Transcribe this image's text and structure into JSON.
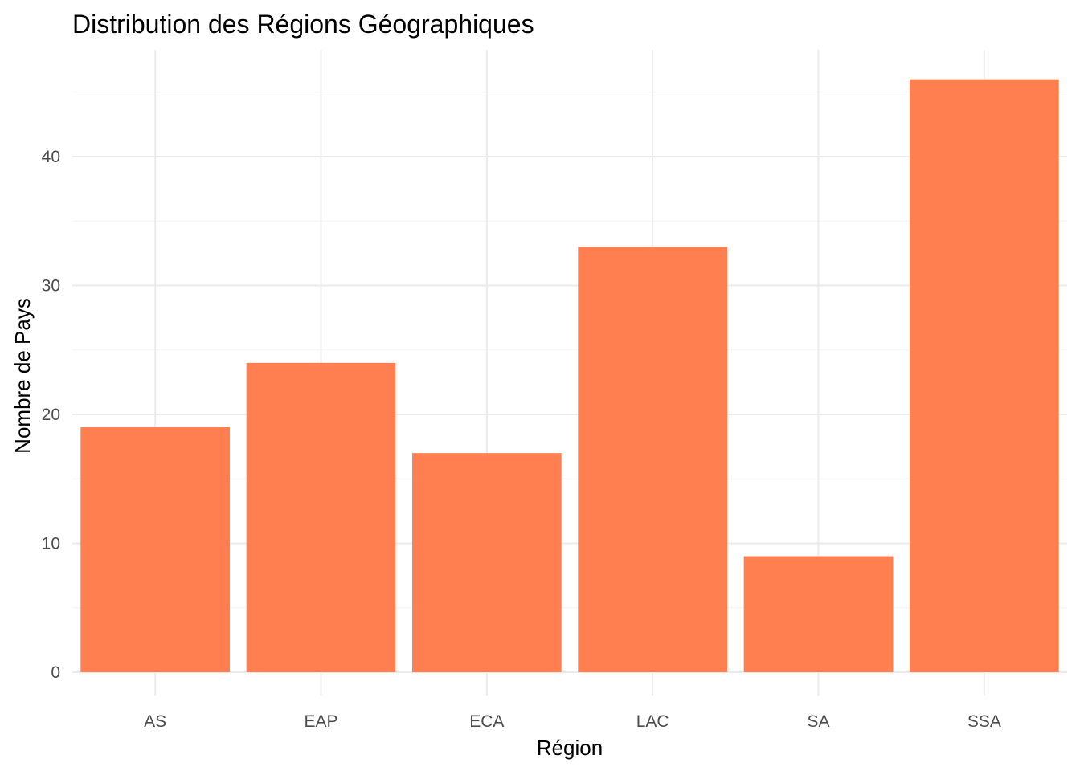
{
  "chart_data": {
    "type": "bar",
    "title": "Distribution des Régions Géographiques",
    "xlabel": "Région",
    "ylabel": "Nombre de Pays",
    "categories": [
      "AS",
      "EAP",
      "ECA",
      "LAC",
      "SA",
      "SSA"
    ],
    "values": [
      19,
      24,
      17,
      33,
      9,
      46
    ],
    "ylim": [
      0,
      48
    ],
    "yticks": [
      0,
      10,
      20,
      30,
      40
    ],
    "bar_color": "#FF7F50",
    "grid": true,
    "legend": "none"
  }
}
